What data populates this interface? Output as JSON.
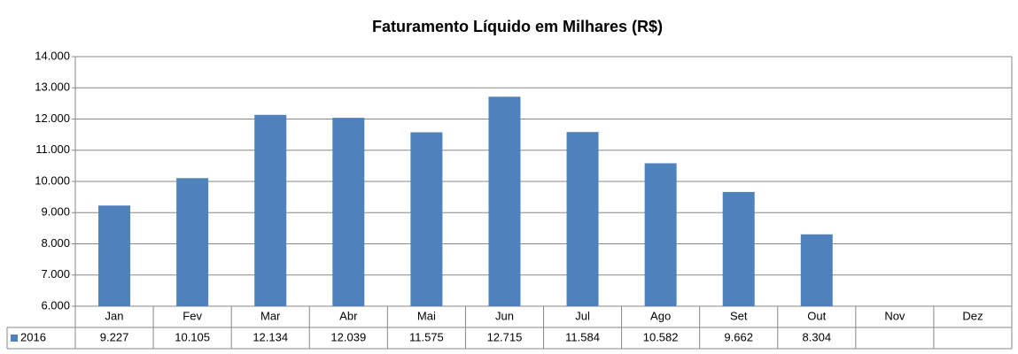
{
  "chart_data": {
    "type": "bar",
    "title": "Faturamento Líquido em Milhares (R$)",
    "categories": [
      "Jan",
      "Fev",
      "Mar",
      "Abr",
      "Mai",
      "Jun",
      "Jul",
      "Ago",
      "Set",
      "Out",
      "Nov",
      "Dez"
    ],
    "series": [
      {
        "name": "2016",
        "color": "#4f81bd",
        "values": [
          9227,
          10105,
          12134,
          12039,
          11575,
          12715,
          11584,
          10582,
          9662,
          8304,
          null,
          null
        ],
        "value_labels": [
          "9.227",
          "10.105",
          "12.134",
          "12.039",
          "11.575",
          "12.715",
          "11.584",
          "10.582",
          "9.662",
          "8.304",
          null,
          null
        ]
      }
    ],
    "ylim": [
      6000,
      14000
    ],
    "yticks": [
      {
        "value": 6000,
        "label": "6.000"
      },
      {
        "value": 7000,
        "label": "7.000"
      },
      {
        "value": 8000,
        "label": "8.000"
      },
      {
        "value": 9000,
        "label": "9.000"
      },
      {
        "value": 10000,
        "label": "10.000"
      },
      {
        "value": 11000,
        "label": "11.000"
      },
      {
        "value": 12000,
        "label": "12.000"
      },
      {
        "value": 13000,
        "label": "13.000"
      },
      {
        "value": 14000,
        "label": "14.000"
      }
    ],
    "grid": true
  }
}
